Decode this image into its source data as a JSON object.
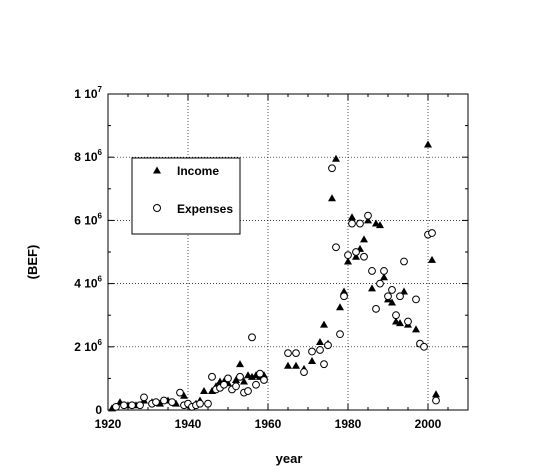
{
  "chart_data": {
    "type": "scatter",
    "xlabel": "year",
    "ylabel": "(BEF)",
    "xlim": [
      1920,
      2010
    ],
    "ylim": [
      0,
      10000000
    ],
    "x_ticks": [
      1920,
      1940,
      1960,
      1980,
      2000
    ],
    "x_tick_labels": [
      "1920",
      "1940",
      "1960",
      "1980",
      "2000"
    ],
    "y_ticks": [
      0,
      2000000,
      4000000,
      6000000,
      8000000,
      10000000
    ],
    "y_tick_labels": [
      {
        "base": "0",
        "exp": ""
      },
      {
        "base": "2 10",
        "exp": "6"
      },
      {
        "base": "4 10",
        "exp": "6"
      },
      {
        "base": "6 10",
        "exp": "6"
      },
      {
        "base": "8 10",
        "exp": "6"
      },
      {
        "base": "1 10",
        "exp": "7"
      }
    ],
    "grid": true,
    "legend_position": "upper-left",
    "series": [
      {
        "name": "Income",
        "marker": "filled-triangle",
        "points": [
          [
            1921,
            50000
          ],
          [
            1923,
            250000
          ],
          [
            1925,
            150000
          ],
          [
            1927,
            150000
          ],
          [
            1929,
            300000
          ],
          [
            1931,
            250000
          ],
          [
            1933,
            200000
          ],
          [
            1935,
            300000
          ],
          [
            1937,
            200000
          ],
          [
            1939,
            450000
          ],
          [
            1940,
            150000
          ],
          [
            1942,
            200000
          ],
          [
            1943,
            300000
          ],
          [
            1944,
            600000
          ],
          [
            1946,
            600000
          ],
          [
            1947,
            750000
          ],
          [
            1948,
            900000
          ],
          [
            1949,
            900000
          ],
          [
            1950,
            850000
          ],
          [
            1952,
            950000
          ],
          [
            1953,
            1450000
          ],
          [
            1954,
            900000
          ],
          [
            1955,
            1100000
          ],
          [
            1956,
            1050000
          ],
          [
            1957,
            1100000
          ],
          [
            1958,
            1050000
          ],
          [
            1959,
            1100000
          ],
          [
            1965,
            1400000
          ],
          [
            1967,
            1400000
          ],
          [
            1969,
            1300000
          ],
          [
            1971,
            1550000
          ],
          [
            1973,
            2150000
          ],
          [
            1974,
            2700000
          ],
          [
            1975,
            2100000
          ],
          [
            1976,
            6700000
          ],
          [
            1977,
            7950000
          ],
          [
            1978,
            3250000
          ],
          [
            1979,
            3750000
          ],
          [
            1980,
            4700000
          ],
          [
            1981,
            6100000
          ],
          [
            1982,
            4850000
          ],
          [
            1983,
            5100000
          ],
          [
            1984,
            5400000
          ],
          [
            1985,
            6000000
          ],
          [
            1986,
            3850000
          ],
          [
            1987,
            5900000
          ],
          [
            1988,
            5850000
          ],
          [
            1989,
            4200000
          ],
          [
            1990,
            3500000
          ],
          [
            1991,
            3400000
          ],
          [
            1992,
            2800000
          ],
          [
            1993,
            2750000
          ],
          [
            1994,
            3750000
          ],
          [
            1995,
            2700000
          ],
          [
            1997,
            2550000
          ],
          [
            1998,
            2100000
          ],
          [
            2000,
            8400000
          ],
          [
            2001,
            4750000
          ],
          [
            2002,
            500000
          ]
        ]
      },
      {
        "name": "Expenses",
        "marker": "open-circle",
        "points": [
          [
            1922,
            100000
          ],
          [
            1924,
            150000
          ],
          [
            1926,
            150000
          ],
          [
            1928,
            150000
          ],
          [
            1929,
            400000
          ],
          [
            1931,
            200000
          ],
          [
            1932,
            250000
          ],
          [
            1934,
            300000
          ],
          [
            1936,
            250000
          ],
          [
            1938,
            550000
          ],
          [
            1939,
            150000
          ],
          [
            1940,
            200000
          ],
          [
            1941,
            100000
          ],
          [
            1942,
            150000
          ],
          [
            1943,
            200000
          ],
          [
            1945,
            200000
          ],
          [
            1946,
            1050000
          ],
          [
            1947,
            650000
          ],
          [
            1948,
            700000
          ],
          [
            1949,
            800000
          ],
          [
            1950,
            1000000
          ],
          [
            1951,
            650000
          ],
          [
            1952,
            750000
          ],
          [
            1953,
            1050000
          ],
          [
            1954,
            550000
          ],
          [
            1955,
            600000
          ],
          [
            1956,
            2300000
          ],
          [
            1957,
            800000
          ],
          [
            1958,
            1150000
          ],
          [
            1959,
            950000
          ],
          [
            1965,
            1800000
          ],
          [
            1967,
            1800000
          ],
          [
            1969,
            1200000
          ],
          [
            1971,
            1850000
          ],
          [
            1973,
            1900000
          ],
          [
            1974,
            1450000
          ],
          [
            1975,
            2050000
          ],
          [
            1976,
            7650000
          ],
          [
            1977,
            5150000
          ],
          [
            1978,
            2400000
          ],
          [
            1979,
            3600000
          ],
          [
            1980,
            4900000
          ],
          [
            1981,
            5900000
          ],
          [
            1982,
            5000000
          ],
          [
            1983,
            5900000
          ],
          [
            1984,
            4850000
          ],
          [
            1985,
            6150000
          ],
          [
            1986,
            4400000
          ],
          [
            1987,
            3200000
          ],
          [
            1988,
            4000000
          ],
          [
            1989,
            4400000
          ],
          [
            1990,
            3600000
          ],
          [
            1991,
            3800000
          ],
          [
            1992,
            3000000
          ],
          [
            1993,
            3600000
          ],
          [
            1994,
            4700000
          ],
          [
            1995,
            2800000
          ],
          [
            1997,
            3500000
          ],
          [
            1998,
            2100000
          ],
          [
            1999,
            2000000
          ],
          [
            2000,
            5550000
          ],
          [
            2001,
            5600000
          ],
          [
            2002,
            300000
          ]
        ]
      }
    ]
  }
}
